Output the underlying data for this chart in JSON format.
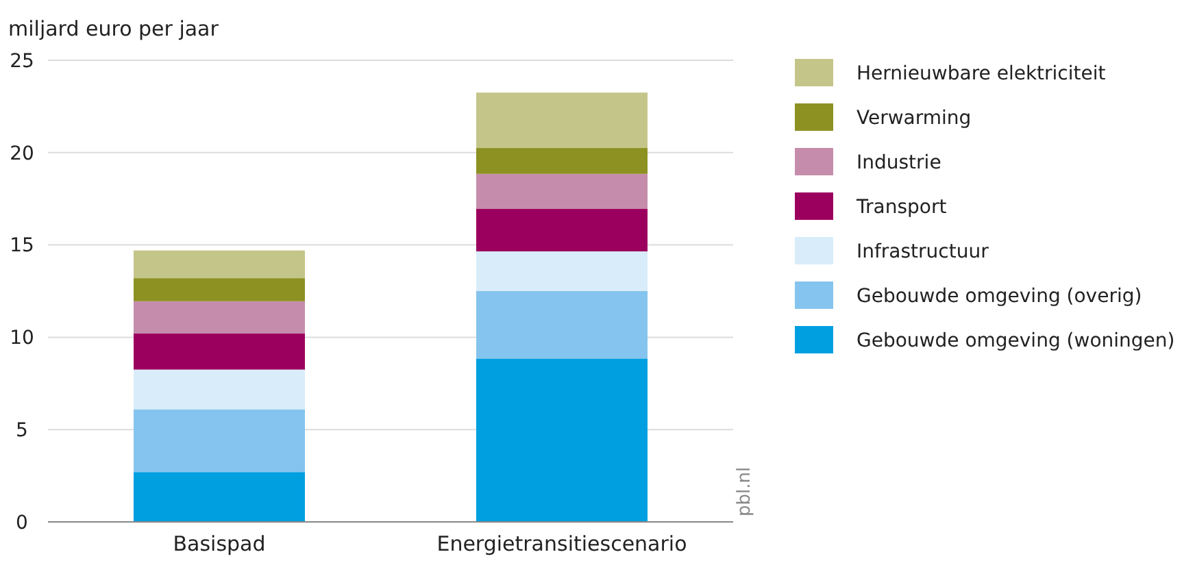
{
  "chart_data": {
    "type": "bar",
    "stacked": true,
    "ylabel": "miljard euro per jaar",
    "categories": [
      "Basispad",
      "Energietransitiescenario"
    ],
    "series": [
      {
        "name": "Gebouwde omgeving (woningen)",
        "color": "#009fe0",
        "values": [
          2.7,
          8.85
        ]
      },
      {
        "name": "Gebouwde omgeving (overig)",
        "color": "#85c4ee",
        "values": [
          3.4,
          3.65
        ]
      },
      {
        "name": "Infrastructuur",
        "color": "#d9ecf9",
        "values": [
          2.15,
          2.15
        ]
      },
      {
        "name": "Transport",
        "color": "#9c005e",
        "values": [
          1.95,
          2.3
        ]
      },
      {
        "name": "Industrie",
        "color": "#c58dab",
        "values": [
          1.75,
          1.9
        ]
      },
      {
        "name": "Verwarming",
        "color": "#8c9122",
        "values": [
          1.25,
          1.4
        ]
      },
      {
        "name": "Hernieuwbare elektriciteit",
        "color": "#c4c589",
        "values": [
          1.5,
          3.0
        ]
      }
    ],
    "ylim": [
      0,
      25
    ],
    "yticks": [
      0,
      5,
      10,
      15,
      20,
      25
    ],
    "grid": "y",
    "legend": "right",
    "annotations": [
      "pbl.nl"
    ]
  }
}
